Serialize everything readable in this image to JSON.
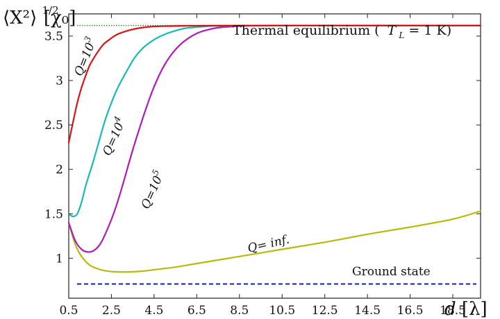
{
  "chart_data": {
    "type": "line",
    "ylabel_main": "⟨X²⟩",
    "ylabel_sup": "1/2",
    "ylabel_unit": "[χ₀]",
    "xlabel_main": "d",
    "xlabel_unit": "[λ]",
    "xlim": [
      0.5,
      19.8
    ],
    "ylim": [
      0.55,
      3.75
    ],
    "xticks": [
      0.5,
      2.5,
      4.5,
      6.5,
      8.5,
      10.5,
      12.5,
      14.5,
      16.5,
      18.5
    ],
    "xtick_labels": [
      "0.5",
      "2.5",
      "4.5",
      "6.5",
      "8.5",
      "10.5",
      "12.5",
      "14.5",
      "16.5",
      "18.5"
    ],
    "yticks": [
      1,
      1.5,
      2,
      2.5,
      3,
      3.5
    ],
    "ytick_labels": [
      "1",
      "1.5",
      "2",
      "2.5",
      "3",
      "3.5"
    ],
    "grid": false,
    "reference_lines": [
      {
        "label": "Thermal equilibrium ( T_L = 1 K)",
        "label_pre": "Thermal equilibrium (",
        "label_T": "T",
        "label_sub": "L",
        "label_post": " = 1 K)",
        "y": 3.62,
        "color": "#2e8b22",
        "style": "dotted"
      },
      {
        "label": "Ground state",
        "y": 0.71,
        "color": "#1a1ab8",
        "style": "dashed"
      }
    ],
    "series": [
      {
        "name": "Q=10³",
        "color": "#dd1111",
        "x": [
          0.5,
          0.7,
          0.9,
          1.1,
          1.3,
          1.5,
          1.8,
          2.1,
          2.4,
          2.7,
          3.0,
          3.4,
          3.8,
          4.3,
          5.0,
          6.0,
          7.0,
          8.0,
          9.0,
          10.5,
          12.5,
          14.5,
          16.5,
          18.5,
          19.8
        ],
        "y": [
          2.3,
          2.53,
          2.75,
          2.92,
          3.06,
          3.18,
          3.3,
          3.4,
          3.46,
          3.51,
          3.54,
          3.57,
          3.59,
          3.605,
          3.612,
          3.616,
          3.617,
          3.618,
          3.618,
          3.618,
          3.618,
          3.618,
          3.618,
          3.618,
          3.618
        ]
      },
      {
        "name": "Q=10⁴",
        "color": "#18b8b8",
        "x": [
          0.5,
          0.7,
          0.9,
          1.1,
          1.3,
          1.6,
          1.9,
          2.2,
          2.5,
          2.8,
          3.2,
          3.6,
          4.0,
          4.5,
          5.0,
          5.5,
          6.0,
          6.5,
          7.0,
          7.5,
          8.5,
          10.5,
          12.5,
          14.5,
          16.5,
          18.5,
          19.8
        ],
        "y": [
          1.5,
          1.47,
          1.5,
          1.63,
          1.82,
          2.05,
          2.3,
          2.55,
          2.75,
          2.92,
          3.1,
          3.26,
          3.37,
          3.46,
          3.52,
          3.56,
          3.59,
          3.6,
          3.61,
          3.615,
          3.617,
          3.618,
          3.618,
          3.618,
          3.618,
          3.618,
          3.618
        ]
      },
      {
        "name": "Q=10⁵",
        "color": "#b01ab8",
        "x": [
          0.5,
          0.8,
          1.1,
          1.4,
          1.7,
          2.0,
          2.3,
          2.6,
          2.9,
          3.2,
          3.5,
          3.8,
          4.1,
          4.4,
          4.7,
          5.0,
          5.4,
          5.8,
          6.2,
          6.6,
          7.0,
          7.5,
          8.0,
          8.5,
          9.0,
          10.0,
          10.5,
          12.5,
          14.5,
          16.5,
          18.5,
          19.8
        ],
        "y": [
          1.4,
          1.2,
          1.1,
          1.07,
          1.09,
          1.17,
          1.32,
          1.5,
          1.72,
          1.97,
          2.22,
          2.45,
          2.67,
          2.87,
          3.04,
          3.18,
          3.32,
          3.42,
          3.49,
          3.54,
          3.57,
          3.595,
          3.605,
          3.612,
          3.616,
          3.618,
          3.618,
          3.618,
          3.618,
          3.618,
          3.618,
          3.618
        ]
      },
      {
        "name": "Q= inf.",
        "color": "#b8b80e",
        "x": [
          0.5,
          0.8,
          1.1,
          1.5,
          2.0,
          2.5,
          3.0,
          3.5,
          4.0,
          4.5,
          5.5,
          6.5,
          8.5,
          10.5,
          12.5,
          14.5,
          16.5,
          18.5,
          19.8
        ],
        "y": [
          1.4,
          1.16,
          1.02,
          0.92,
          0.87,
          0.85,
          0.845,
          0.847,
          0.855,
          0.87,
          0.9,
          0.94,
          1.02,
          1.1,
          1.18,
          1.27,
          1.35,
          1.44,
          1.53
        ]
      }
    ],
    "series_labels": [
      {
        "text": "Q=10³",
        "pre": "Q=10",
        "sup": "3",
        "rot": -68,
        "x": 1.45,
        "y": 3.25
      },
      {
        "text": "Q=10⁴",
        "pre": "Q=10",
        "sup": "4",
        "rot": -66,
        "x": 2.8,
        "y": 2.35
      },
      {
        "text": "Q=10⁵",
        "pre": "Q=10",
        "sup": "5",
        "rot": -66,
        "x": 4.6,
        "y": 1.75
      },
      {
        "text": "Q= inf.",
        "pre": "Q= inf.",
        "sup": "",
        "rot": -13,
        "x": 9.9,
        "y": 1.12
      }
    ]
  }
}
